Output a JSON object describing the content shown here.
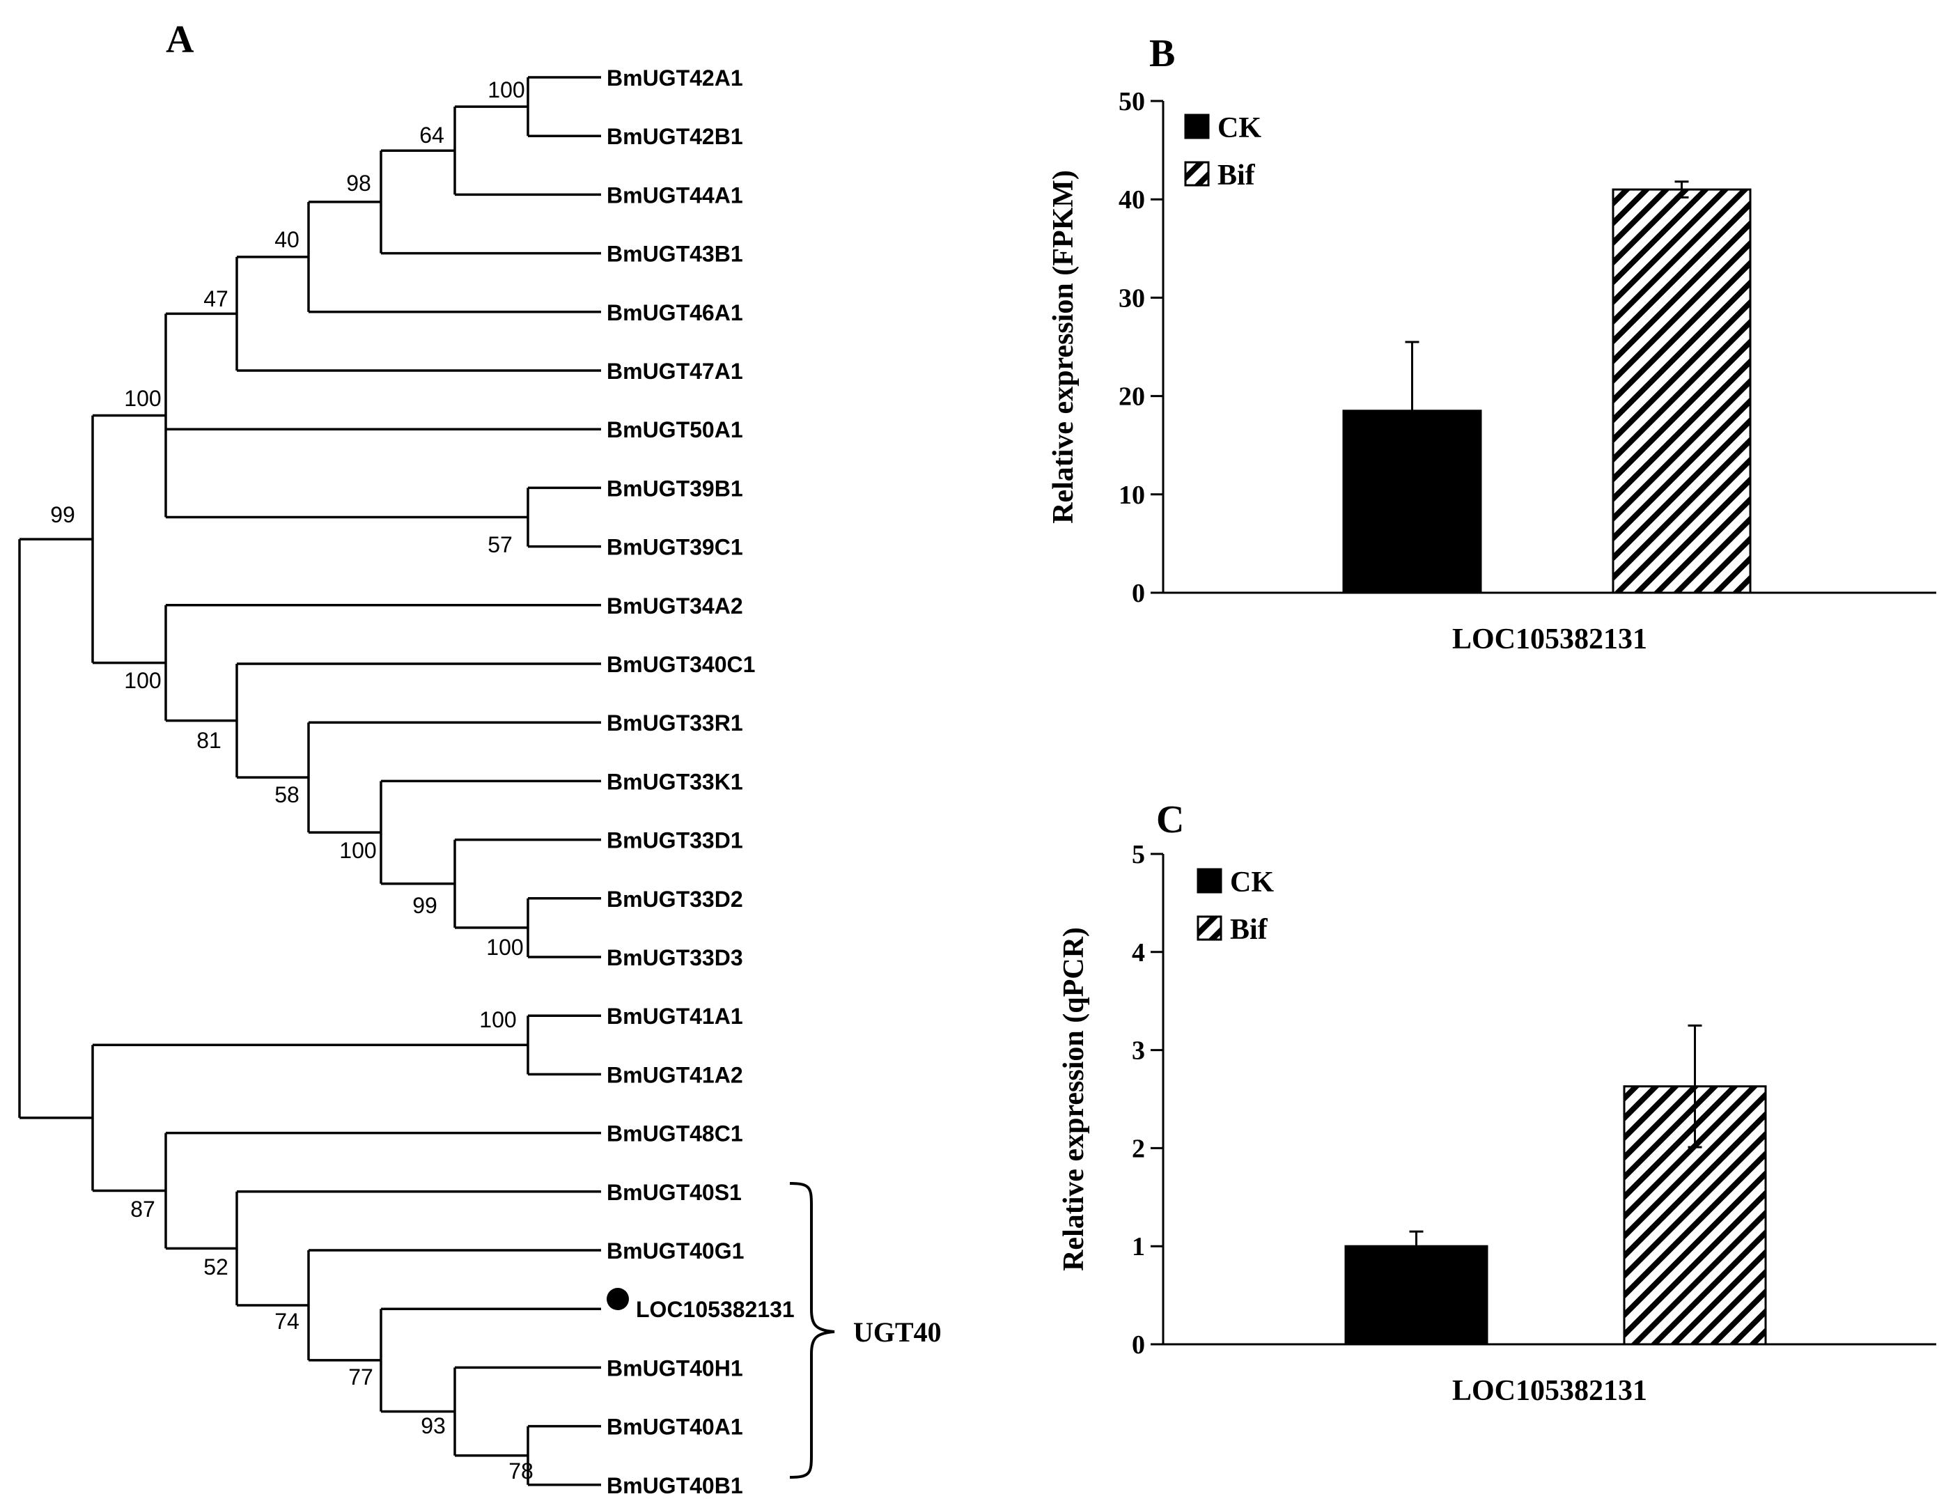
{
  "colors": {
    "ink": "#000000",
    "background": "#ffffff"
  },
  "panel_a": {
    "label": "A",
    "leaf_marker_icon": "filled-circle",
    "clade_bracket_label": "UGT40",
    "leaves": [
      "BmUGT42A1",
      "BmUGT42B1",
      "BmUGT44A1",
      "BmUGT43B1",
      "BmUGT46A1",
      "BmUGT47A1",
      "BmUGT50A1",
      "BmUGT39B1",
      "BmUGT39C1",
      "BmUGT34A2",
      "BmUGT340C1",
      "BmUGT33R1",
      "BmUGT33K1",
      "BmUGT33D1",
      "BmUGT33D2",
      "BmUGT33D3",
      "BmUGT41A1",
      "BmUGT41A2",
      "BmUGT48C1",
      "BmUGT40S1",
      "BmUGT40G1",
      "LOC105382131",
      "BmUGT40H1",
      "BmUGT40A1",
      "BmUGT40B1"
    ],
    "marked_leaf": "LOC105382131",
    "bootstrap_values": [
      "100",
      "64",
      "98",
      "40",
      "47",
      "57",
      "100",
      "100",
      "99",
      "100",
      "58",
      "81",
      "100",
      "99",
      "100",
      "78",
      "93",
      "77",
      "74",
      "52",
      "87"
    ]
  },
  "chart_data": [
    {
      "panel": "B",
      "type": "bar",
      "title": "",
      "categories": [
        "LOC105382131"
      ],
      "series": [
        {
          "name": "CK",
          "values": [
            18.5
          ],
          "errors": [
            7.0
          ],
          "pattern": "solid"
        },
        {
          "name": "Bif",
          "values": [
            41.0
          ],
          "errors": [
            0.8
          ],
          "pattern": "hatched"
        }
      ],
      "xlabel": "LOC105382131",
      "ylabel": "Relative expression (FPKM)",
      "ylim": [
        0,
        50
      ],
      "yticks": [
        0,
        10,
        20,
        30,
        40,
        50
      ],
      "grid": false,
      "legend": "top-left"
    },
    {
      "panel": "C",
      "type": "bar",
      "title": "",
      "categories": [
        "LOC105382131"
      ],
      "series": [
        {
          "name": "CK",
          "values": [
            1.0
          ],
          "errors": [
            0.15
          ],
          "pattern": "solid"
        },
        {
          "name": "Bif",
          "values": [
            2.63
          ],
          "errors": [
            0.62
          ],
          "pattern": "hatched"
        }
      ],
      "xlabel": "LOC105382131",
      "ylabel": "Relative expression (qPCR)",
      "ylim": [
        0,
        5
      ],
      "yticks": [
        0,
        1,
        2,
        3,
        4,
        5
      ],
      "grid": false,
      "legend": "top-left"
    }
  ]
}
